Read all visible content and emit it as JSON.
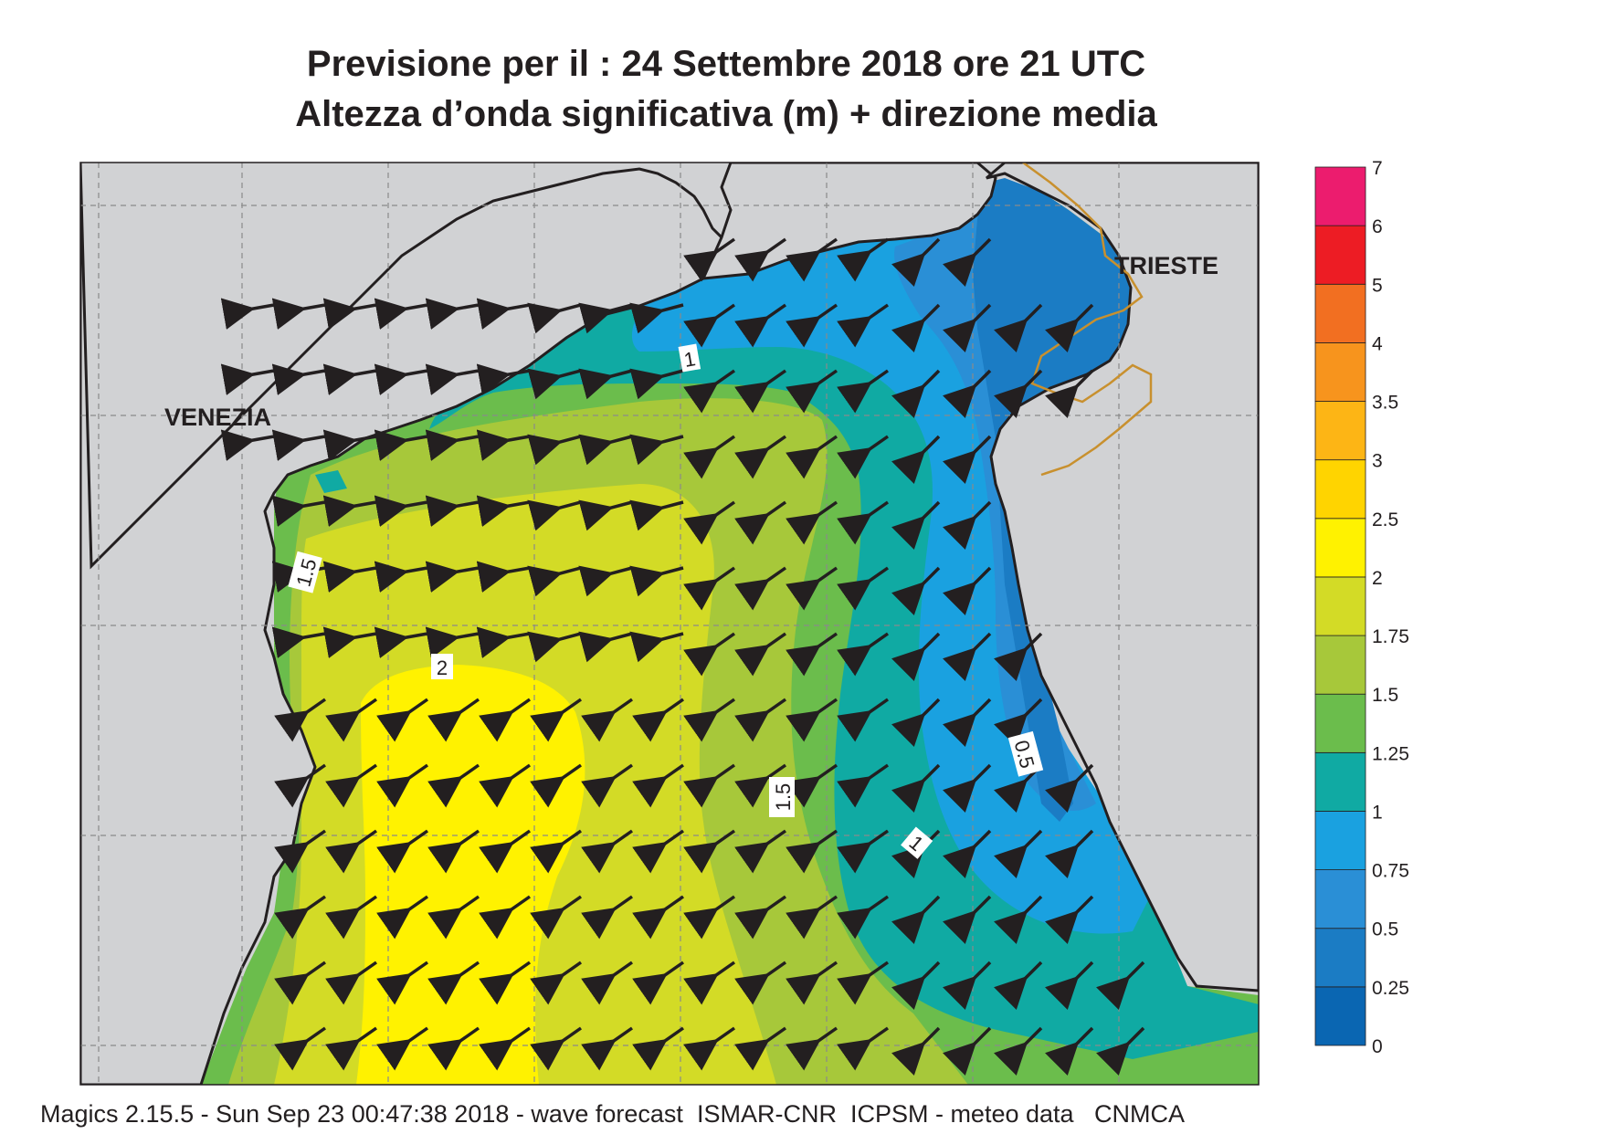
{
  "title": {
    "line1": "Previsione per il  :  24 Settembre 2018   ore 21 UTC",
    "line2": "Altezza d’onda significativa (m) + direzione media"
  },
  "map": {
    "place_labels": [
      "VENEZIA",
      "TRIESTE"
    ],
    "contour_labels": [
      "1",
      "1.5",
      "2",
      "1.5",
      "1",
      "0.5"
    ],
    "land_color": "#d1d2d4",
    "coastline_color": "#231f20",
    "border_color": "#c8902e",
    "arrow_color": "#231f20",
    "arrow_direction": "toward south-west / west (mean wave direction from north-east)"
  },
  "legend": {
    "levels": [
      "0",
      "0.25",
      "0.5",
      "0.75",
      "1",
      "1.25",
      "1.5",
      "1.75",
      "2",
      "2.5",
      "3",
      "3.5",
      "4",
      "5",
      "6",
      "7"
    ],
    "colors": [
      "#0a66b2",
      "#1b7cc4",
      "#2a8fd6",
      "#1aa1e0",
      "#10aaa3",
      "#6bbd4c",
      "#a7c83a",
      "#d3db26",
      "#fff200",
      "#ffd400",
      "#fdb515",
      "#f7941d",
      "#f26f21",
      "#ed1c24",
      "#ec1c6e"
    ]
  },
  "footer": "Magics 2.15.5 - Sun Sep 23 00:47:38 2018 - wave forecast  ISMAR-CNR  ICPSM - meteo data   CNMCA"
}
